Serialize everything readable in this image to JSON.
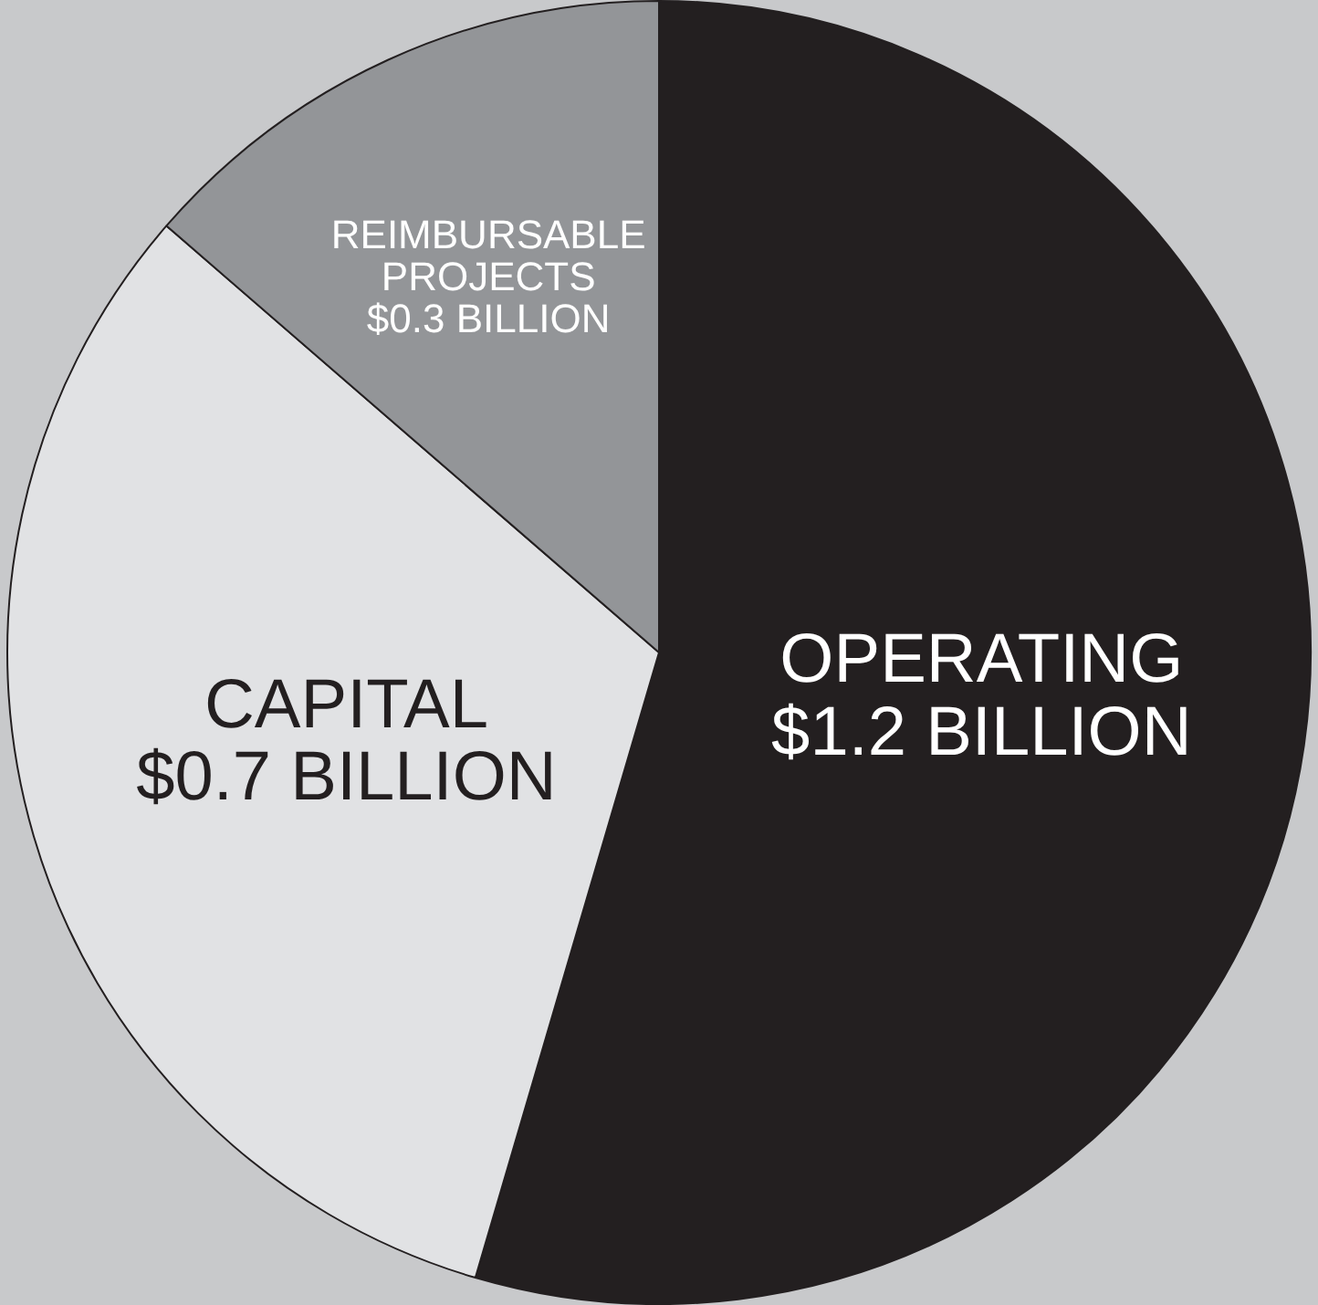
{
  "chart_data": {
    "type": "pie",
    "categories": [
      "OPERATING",
      "CAPITAL",
      "REIMBURSABLE PROJECTS"
    ],
    "values": [
      1.2,
      0.7,
      0.3
    ],
    "value_labels": [
      "$1.2 BILLION",
      "$0.7 BILLION",
      "$0.3 BILLION"
    ],
    "colors": [
      "#231f20",
      "#e1e2e4",
      "#939598"
    ],
    "legend": false
  }
}
